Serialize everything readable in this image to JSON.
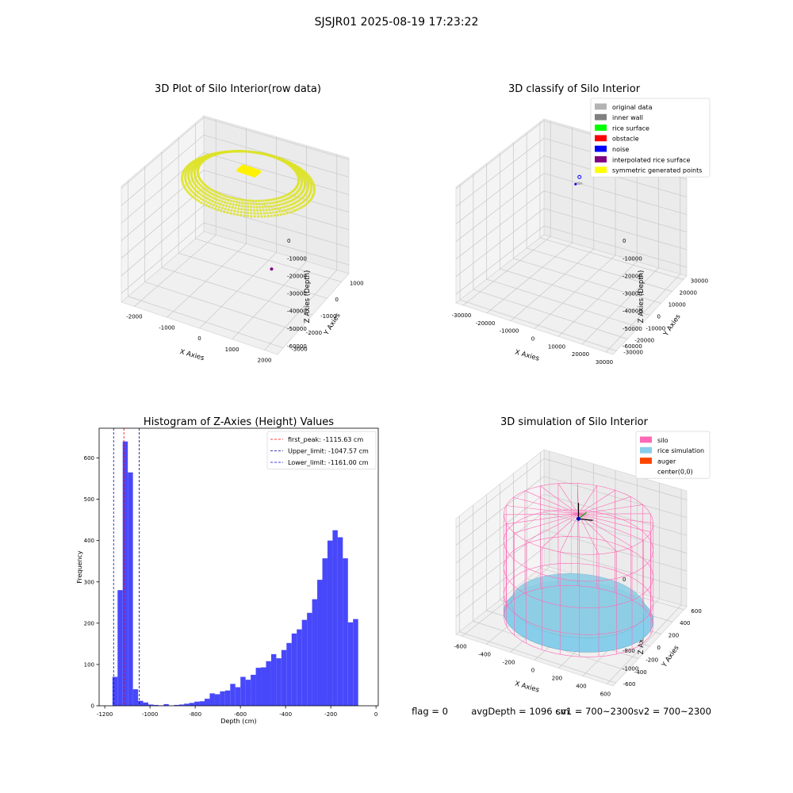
{
  "figure": {
    "suptitle": "SJSJR01 2025-08-19 17:23:22",
    "footer": {
      "flag": "flag = 0",
      "avg_depth": "avgDepth = 1096 cm",
      "sv1": "sv1 = 700~2300",
      "sv2": "sv2 = 700~2300"
    }
  },
  "chart_data": [
    {
      "type": "scatter3d",
      "title": "3D Plot of Silo Interior(row data)",
      "xlabel": "X Axies",
      "ylabel": "Y Axies",
      "zlabel": "Z Axies (Depth)",
      "x_ticks": [
        -2000,
        -1000,
        0,
        1000,
        2000
      ],
      "y_ticks": [
        1000,
        0,
        -1000,
        -2000,
        -3000
      ],
      "z_ticks": [
        0,
        -10000,
        -20000,
        -30000,
        -40000,
        -50000,
        -60000
      ],
      "xlim": [
        -2400,
        2400
      ],
      "ylim": [
        -3400,
        1500
      ],
      "zlim": [
        -65000,
        1000
      ],
      "point_color": "#dde326",
      "outlier_color": "#800080"
    },
    {
      "type": "scatter3d",
      "title": "3D classify of Silo Interior",
      "xlabel": "X Axies",
      "ylabel": "Y Axies",
      "zlabel": "Z Axies (Depth)",
      "x_ticks": [
        -30000,
        -20000,
        -10000,
        0,
        10000,
        20000,
        30000
      ],
      "y_ticks": [
        30000,
        20000,
        10000,
        0,
        -10000,
        -20000,
        -30000
      ],
      "z_ticks": [
        0,
        -10000,
        -20000,
        -30000,
        -40000,
        -50000,
        -60000
      ],
      "xlim": [
        -33000,
        33000
      ],
      "ylim": [
        -33000,
        33000
      ],
      "zlim": [
        -65000,
        1000
      ],
      "legend_position": "upper-right",
      "legend": [
        {
          "label": "original data",
          "color": "#b3b3b3"
        },
        {
          "label": "inner wall",
          "color": "#808080"
        },
        {
          "label": "rice surface",
          "color": "#00ff00"
        },
        {
          "label": "obstacle",
          "color": "#ff0000"
        },
        {
          "label": "noise",
          "color": "#0000ff"
        },
        {
          "label": "interpolated rice surface",
          "color": "#800080"
        },
        {
          "label": "symmetric generated points",
          "color": "#ffff00"
        }
      ]
    },
    {
      "type": "bar",
      "title": "Histogram of Z-Axies (Height) Values",
      "xlabel": "Depth (cm)",
      "ylabel": "Frequency",
      "xlim": [
        -1225,
        10
      ],
      "ylim": [
        0,
        672
      ],
      "x_ticks": [
        -1200,
        -1000,
        -800,
        -600,
        -400,
        -200,
        0
      ],
      "y_ticks": [
        0,
        100,
        200,
        300,
        400,
        500,
        600
      ],
      "bar_color": "#4848fb",
      "bin_start": -1166,
      "bin_width": 22.65,
      "values": [
        70,
        280,
        640,
        565,
        40,
        12,
        8,
        3,
        2,
        1,
        4,
        0,
        2,
        3,
        5,
        7,
        10,
        11,
        17,
        30,
        28,
        35,
        37,
        53,
        45,
        70,
        63,
        75,
        92,
        93,
        108,
        125,
        115,
        135,
        152,
        175,
        185,
        208,
        225,
        258,
        305,
        357,
        400,
        425,
        408,
        357,
        202,
        210
      ],
      "legend_position": "upper-right",
      "vlines": [
        {
          "label": "first_peak: -1115.63 cm",
          "x": -1115.63,
          "color": "#ff0000"
        },
        {
          "label": "Upper_limit: -1047.57 cm",
          "x": -1047.57,
          "color": "#00008b"
        },
        {
          "label": "Lower_limit: -1161.00 cm",
          "x": -1161.0,
          "color": "#0000cd"
        }
      ]
    },
    {
      "type": "surface3d",
      "title": "3D simulation of Silo Interior",
      "xlabel": "X Axies",
      "ylabel": "Y Axies",
      "zlabel": "Z Axies (Depth)",
      "x_ticks": [
        -600,
        -400,
        -200,
        0,
        200,
        400,
        600
      ],
      "y_ticks": [
        600,
        400,
        200,
        0,
        -200,
        -400,
        -600
      ],
      "z_ticks": [
        0,
        -200,
        -400,
        -600,
        -800,
        -1000
      ],
      "xlim": [
        -650,
        650
      ],
      "ylim": [
        -650,
        650
      ],
      "zlim": [
        -1200,
        100
      ],
      "silo_radius": 540,
      "rice_surface_depth": -1096,
      "legend_position": "upper-right",
      "legend": [
        {
          "label": "silo",
          "color": "#ff69b4"
        },
        {
          "label": "rice simulation",
          "color": "#87ceeb"
        },
        {
          "label": "auger",
          "color": "#ff4500"
        },
        {
          "label": "center(0,0)",
          "color": "#ffffff"
        }
      ]
    }
  ]
}
